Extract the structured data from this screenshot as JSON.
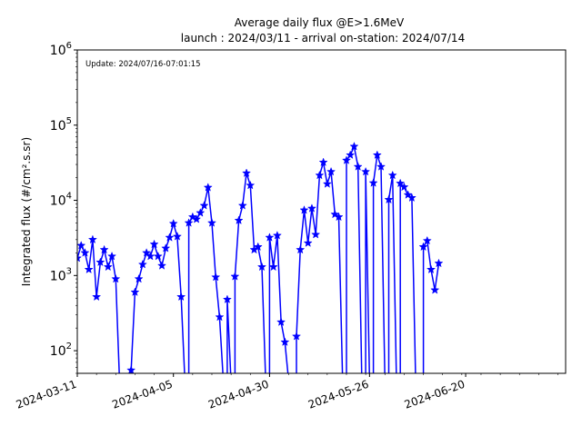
{
  "chart_data": {
    "type": "line",
    "title": "Average daily flux @E>1.6MeV",
    "subtitle": "launch : 2024/03/11 - arrival on-station: 2024/07/14",
    "ylabel": "Integrated flux (#/cm².s.sr)",
    "xlabel": "",
    "annotation": "Update: 2024/07/16-07:01:15",
    "y_scale": "log",
    "ylim": [
      50,
      1000000
    ],
    "xlim": [
      "2024-03-11",
      "2024-07-16"
    ],
    "x_ticks": [
      "2024-03-11",
      "2024-04-05",
      "2024-04-30",
      "2024-05-26",
      "2024-06-20"
    ],
    "y_ticks": [
      {
        "value": 100,
        "base": "10",
        "exp": "2"
      },
      {
        "value": 1000,
        "base": "10",
        "exp": "3"
      },
      {
        "value": 10000,
        "base": "10",
        "exp": "4"
      },
      {
        "value": 100000,
        "base": "10",
        "exp": "5"
      },
      {
        "value": 1000000,
        "base": "10",
        "exp": "6"
      }
    ],
    "grid": false,
    "marker": "star",
    "color": "#0000ff",
    "series": [
      {
        "points": [
          [
            "2024-03-11",
            1700
          ],
          [
            "2024-03-12",
            2500
          ],
          [
            "2024-03-13",
            2000
          ],
          [
            "2024-03-14",
            1200
          ],
          [
            "2024-03-15",
            3000
          ],
          [
            "2024-03-16",
            520
          ],
          [
            "2024-03-17",
            1500
          ],
          [
            "2024-03-18",
            2200
          ],
          [
            "2024-03-19",
            1300
          ],
          [
            "2024-03-20",
            1800
          ],
          [
            "2024-03-21",
            900
          ],
          [
            "2024-03-22",
            0
          ],
          [
            "2024-03-25",
            0
          ],
          [
            "2024-03-25",
            55
          ],
          [
            "2024-03-26",
            600
          ],
          [
            "2024-03-27",
            900
          ],
          [
            "2024-03-28",
            1400
          ],
          [
            "2024-03-29",
            2000
          ],
          [
            "2024-03-30",
            1800
          ],
          [
            "2024-03-31",
            2600
          ],
          [
            "2024-04-01",
            1800
          ],
          [
            "2024-04-02",
            1350
          ],
          [
            "2024-04-03",
            2300
          ],
          [
            "2024-04-04",
            3200
          ],
          [
            "2024-04-05",
            4900
          ],
          [
            "2024-04-06",
            3300
          ],
          [
            "2024-04-07",
            520
          ],
          [
            "2024-04-08",
            0
          ],
          [
            "2024-04-09",
            0
          ],
          [
            "2024-04-09",
            5000
          ],
          [
            "2024-04-10",
            6000
          ],
          [
            "2024-04-11",
            5600
          ],
          [
            "2024-04-12",
            6800
          ],
          [
            "2024-04-13",
            8500
          ],
          [
            "2024-04-14",
            14800
          ],
          [
            "2024-04-15",
            5000
          ],
          [
            "2024-04-16",
            950
          ],
          [
            "2024-04-17",
            280
          ],
          [
            "2024-04-18",
            0
          ],
          [
            "2024-04-19",
            0
          ],
          [
            "2024-04-19",
            480
          ],
          [
            "2024-04-20",
            0
          ],
          [
            "2024-04-21",
            0
          ],
          [
            "2024-04-21",
            970
          ],
          [
            "2024-04-22",
            5400
          ],
          [
            "2024-04-23",
            8500
          ],
          [
            "2024-04-24",
            23000
          ],
          [
            "2024-04-25",
            15800
          ],
          [
            "2024-04-26",
            2200
          ],
          [
            "2024-04-27",
            2400
          ],
          [
            "2024-04-28",
            1300
          ],
          [
            "2024-04-29",
            0
          ],
          [
            "2024-04-30",
            0
          ],
          [
            "2024-04-30",
            3200
          ],
          [
            "2024-05-01",
            1300
          ],
          [
            "2024-05-02",
            3400
          ],
          [
            "2024-05-03",
            240
          ],
          [
            "2024-05-04",
            130
          ],
          [
            "2024-05-05",
            0
          ],
          [
            "2024-05-07",
            0
          ],
          [
            "2024-05-07",
            155
          ],
          [
            "2024-05-08",
            2200
          ],
          [
            "2024-05-09",
            7400
          ],
          [
            "2024-05-10",
            2700
          ],
          [
            "2024-05-11",
            7800
          ],
          [
            "2024-05-12",
            3500
          ],
          [
            "2024-05-13",
            21500
          ],
          [
            "2024-05-14",
            32000
          ],
          [
            "2024-05-15",
            16500
          ],
          [
            "2024-05-16",
            24000
          ],
          [
            "2024-05-17",
            6500
          ],
          [
            "2024-05-18",
            6000
          ],
          [
            "2024-05-19",
            0
          ],
          [
            "2024-05-20",
            0
          ],
          [
            "2024-05-20",
            34000
          ],
          [
            "2024-05-21",
            40000
          ],
          [
            "2024-05-22",
            52000
          ],
          [
            "2024-05-23",
            28000
          ],
          [
            "2024-05-24",
            0
          ],
          [
            "2024-05-25",
            0
          ],
          [
            "2024-05-25",
            24000
          ],
          [
            "2024-05-26",
            0
          ],
          [
            "2024-05-27",
            0
          ],
          [
            "2024-05-27",
            17000
          ],
          [
            "2024-05-28",
            40000
          ],
          [
            "2024-05-29",
            28000
          ],
          [
            "2024-05-30",
            0
          ],
          [
            "2024-05-31",
            0
          ],
          [
            "2024-05-31",
            10200
          ],
          [
            "2024-06-01",
            21500
          ],
          [
            "2024-06-02",
            0
          ],
          [
            "2024-06-03",
            0
          ],
          [
            "2024-06-03",
            16800
          ],
          [
            "2024-06-04",
            15000
          ],
          [
            "2024-06-05",
            11800
          ],
          [
            "2024-06-06",
            10800
          ],
          [
            "2024-06-07",
            0
          ],
          [
            "2024-06-09",
            0
          ],
          [
            "2024-06-09",
            2400
          ],
          [
            "2024-06-10",
            2900
          ],
          [
            "2024-06-11",
            1200
          ],
          [
            "2024-06-12",
            640
          ],
          [
            "2024-06-13",
            1450
          ]
        ]
      }
    ]
  }
}
